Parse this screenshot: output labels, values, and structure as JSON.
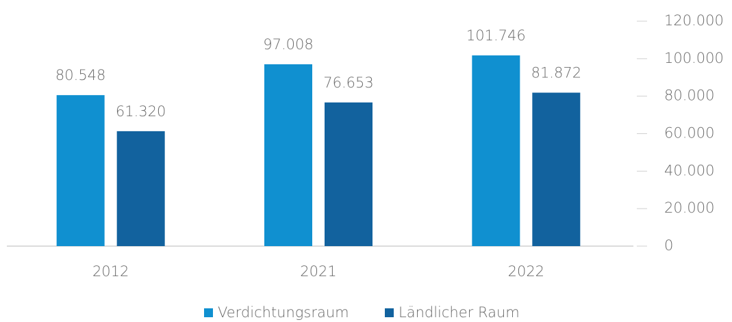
{
  "chart_data": {
    "type": "bar",
    "categories": [
      "2012",
      "2021",
      "2022"
    ],
    "series": [
      {
        "name": "Verdichtungsraum",
        "color": "#1090d0",
        "values": [
          80548,
          97008,
          101746
        ],
        "value_labels": [
          "80.548",
          "97.008",
          "101.746"
        ]
      },
      {
        "name": "Ländlicher Raum",
        "color": "#12629e",
        "values": [
          61320,
          76653,
          81872
        ],
        "value_labels": [
          "61.320",
          "76.653",
          "81.872"
        ]
      }
    ],
    "ylim": [
      0,
      120000
    ],
    "yticks": [
      0,
      {
        "value": 20000,
        "label": "20.000"
      },
      {
        "value": 40000,
        "label": "40.000"
      },
      {
        "value": 60000,
        "label": "60.000"
      },
      {
        "value": 80000,
        "label": "80.000"
      },
      {
        "value": 100000,
        "label": "100.000"
      },
      {
        "value": 120000,
        "label": "120.000"
      }
    ],
    "legend": "bottom"
  }
}
